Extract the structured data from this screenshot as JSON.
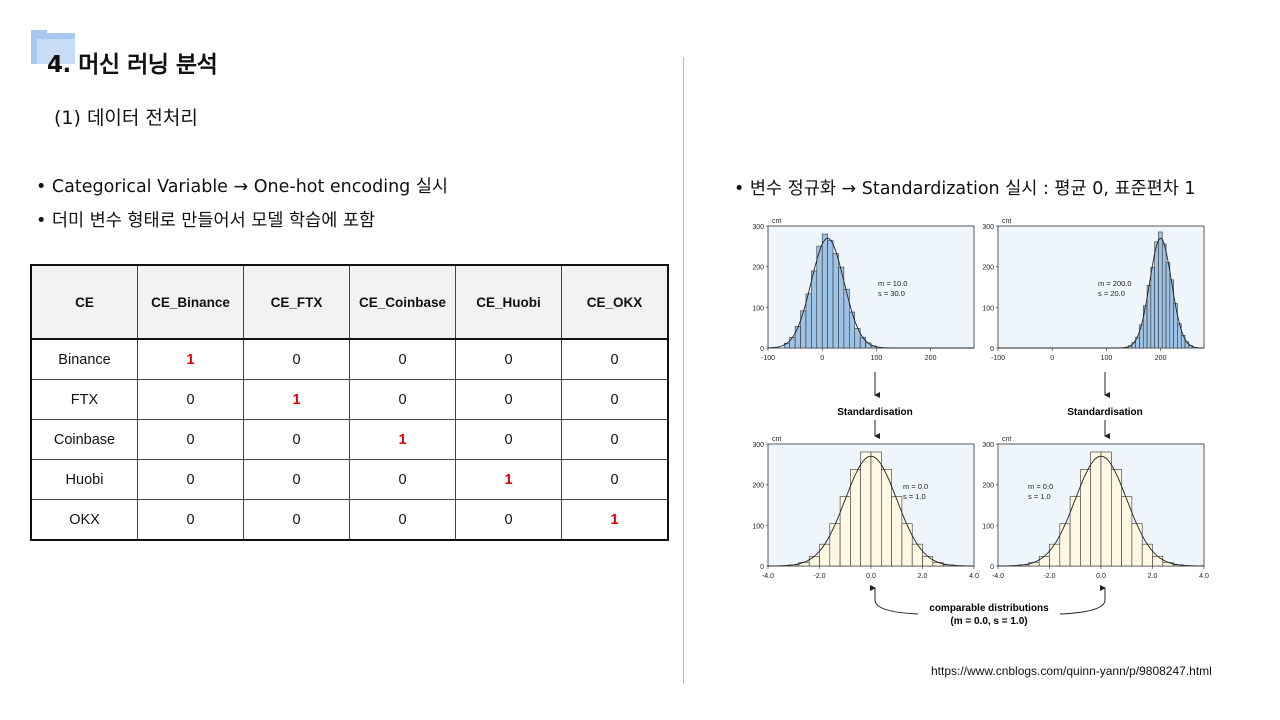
{
  "slide": {
    "title": "4. 머신 러닝 분석",
    "subtitle": "(1) 데이터 전처리",
    "bullets_left": [
      "• Categorical Variable → One-hot encoding 실시",
      "• 더미 변수 형태로 만들어서 모델 학습에 포함"
    ],
    "bullet_right": "• 변수 정규화 → Standardization 실시 : 평균 0, 표준편차 1",
    "source": "https://www.cnblogs.com/quinn-yann/p/9808247.html"
  },
  "table": {
    "columns": [
      "CE",
      "CE_Binance",
      "CE_FTX",
      "CE_Coinbase",
      "CE_Huobi",
      "CE_OKX"
    ],
    "rows": [
      {
        "label": "Binance",
        "values": [
          "1",
          "0",
          "0",
          "0",
          "0"
        ]
      },
      {
        "label": "FTX",
        "values": [
          "0",
          "1",
          "0",
          "0",
          "0"
        ]
      },
      {
        "label": "Coinbase",
        "values": [
          "0",
          "0",
          "1",
          "0",
          "0"
        ]
      },
      {
        "label": "Huobi",
        "values": [
          "0",
          "0",
          "0",
          "1",
          "0"
        ]
      },
      {
        "label": "OKX",
        "values": [
          "0",
          "0",
          "0",
          "0",
          "1"
        ]
      }
    ],
    "highlight_color": "#e00000"
  },
  "figure": {
    "ylabel": "cnt",
    "top_yticks": [
      "300",
      "200",
      "100",
      "0"
    ],
    "top_xticks": [
      "-100",
      "0",
      "100",
      "200"
    ],
    "bottom_yticks": [
      "300",
      "200",
      "100",
      "0"
    ],
    "bottom_xticks": [
      "-4.0",
      "-2.0",
      "0.0",
      "2.0",
      "4.0"
    ],
    "panel_tl_stats": [
      "m = 10.0",
      "s = 30.0"
    ],
    "panel_tr_stats": [
      "m = 200.0",
      "s = 20.0"
    ],
    "panel_bl_stats": [
      "m = 0.0",
      "s = 1.0"
    ],
    "panel_br_stats": [
      "m = 0.0",
      "s = 1.0"
    ],
    "arrow_label": "Standardisation",
    "caption_line1": "comparable distributions",
    "caption_line2": "(m = 0.0, s = 1.0)",
    "top_fill": "#9dc3e6",
    "bottom_fill": "#fdf8e2",
    "panel_bg": "#eef6fc"
  }
}
